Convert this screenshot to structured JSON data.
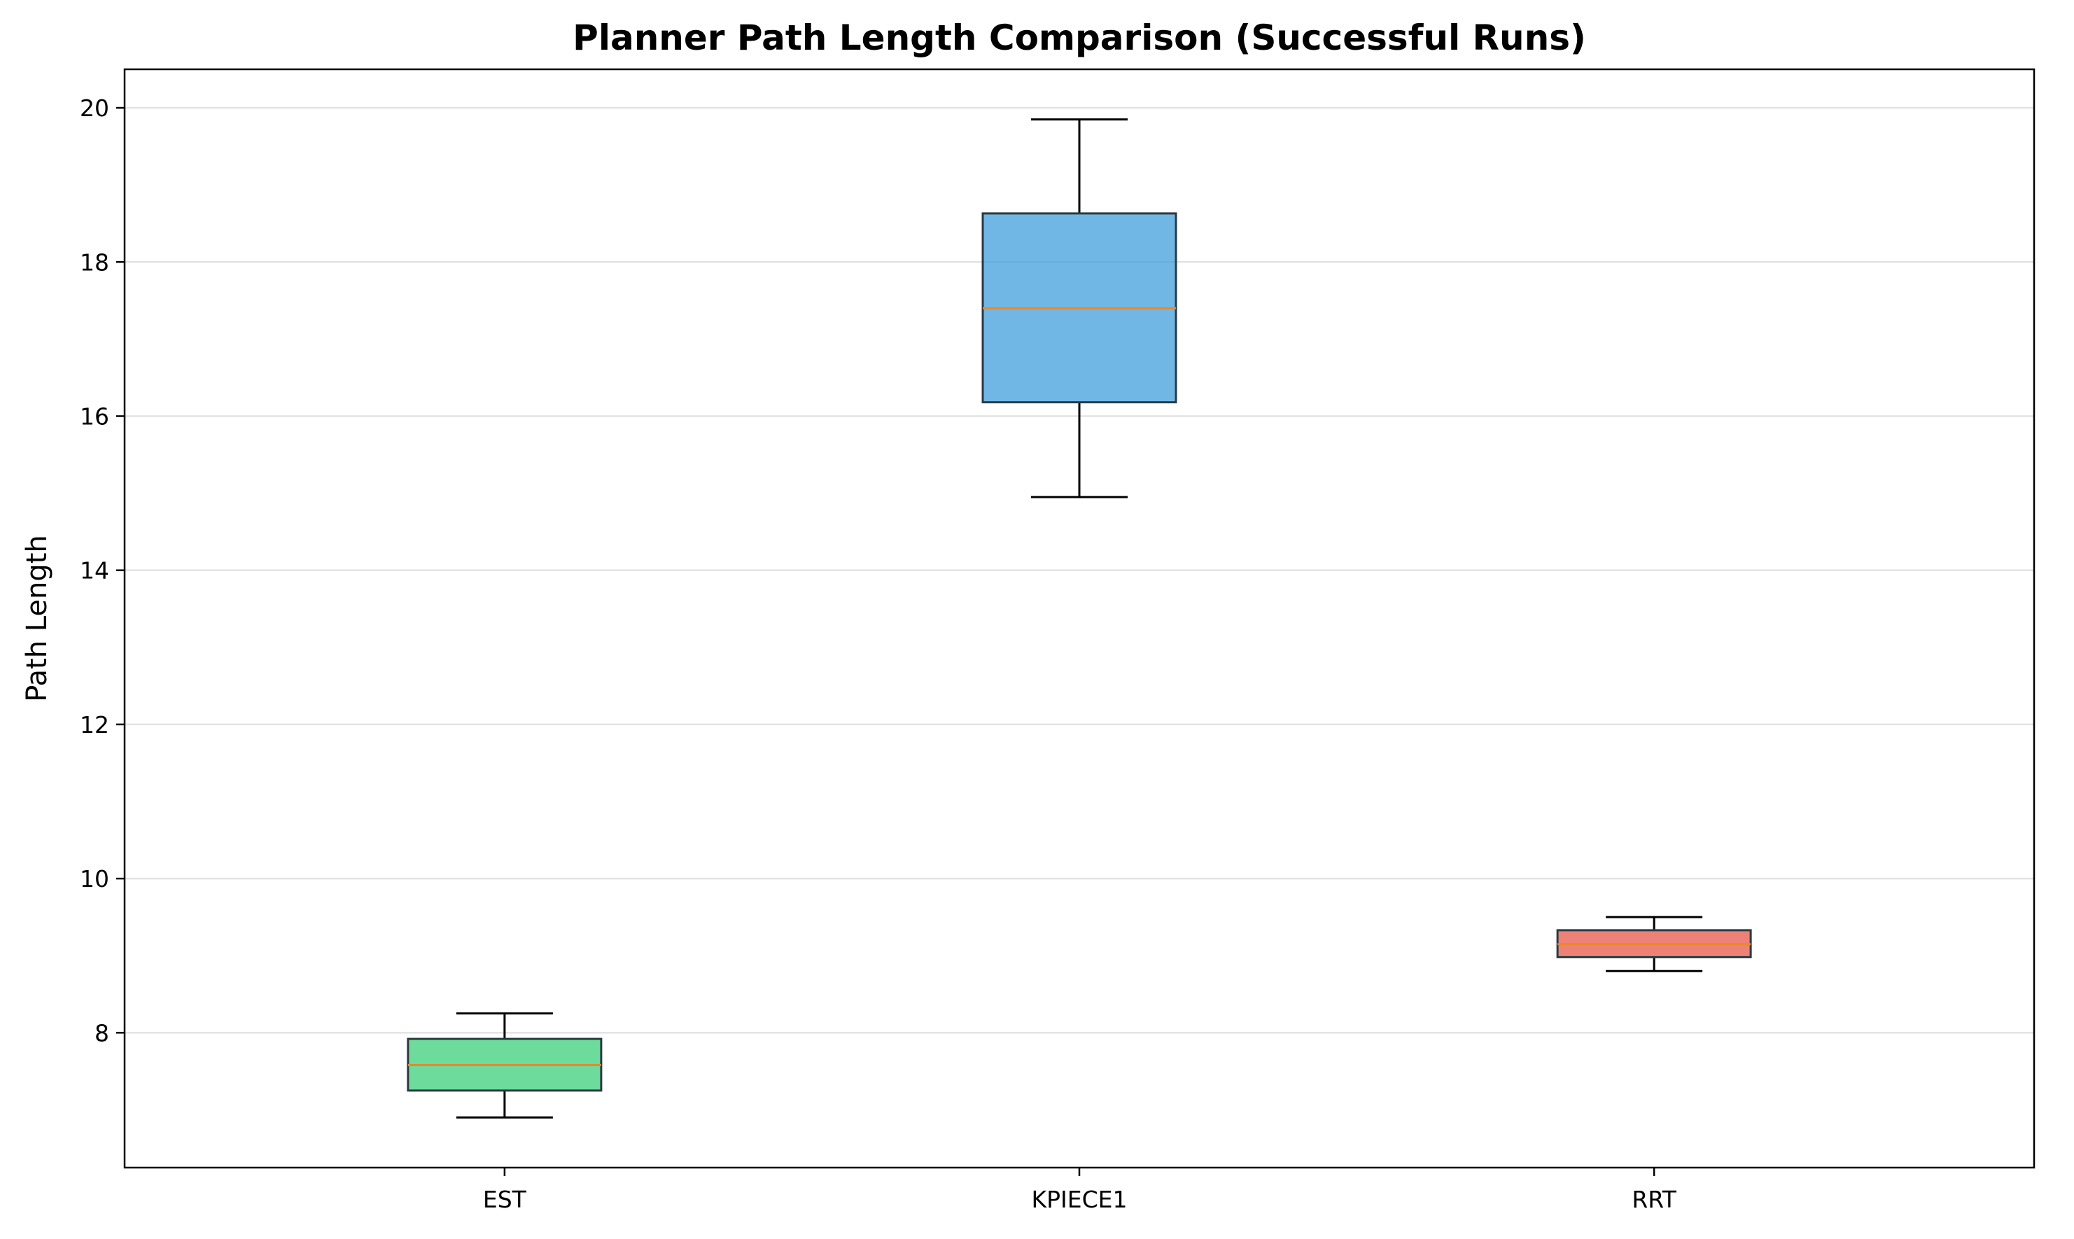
{
  "chart_data": {
    "type": "box",
    "title": "Planner Path Length Comparison (Successful Runs)",
    "xlabel": "",
    "ylabel": "Path Length",
    "ylim": [
      6.25,
      20.5
    ],
    "yticks": [
      8,
      10,
      12,
      14,
      16,
      18,
      20
    ],
    "grid": "y",
    "categories": [
      "EST",
      "KPIECE1",
      "RRT"
    ],
    "series": [
      {
        "category": "EST",
        "whisker_low": 6.9,
        "q1": 7.25,
        "median": 7.58,
        "q3": 7.92,
        "whisker_high": 8.25,
        "color": "#2ecc71"
      },
      {
        "category": "KPIECE1",
        "whisker_low": 14.95,
        "q1": 16.18,
        "median": 17.4,
        "q3": 18.63,
        "whisker_high": 19.85,
        "color": "#3498db"
      },
      {
        "category": "RRT",
        "whisker_low": 8.8,
        "q1": 8.98,
        "median": 9.15,
        "q3": 9.33,
        "whisker_high": 9.5,
        "color": "#e74c3c"
      }
    ],
    "median_color": "#e8882b",
    "box_edge_color": "#2b3a42"
  }
}
